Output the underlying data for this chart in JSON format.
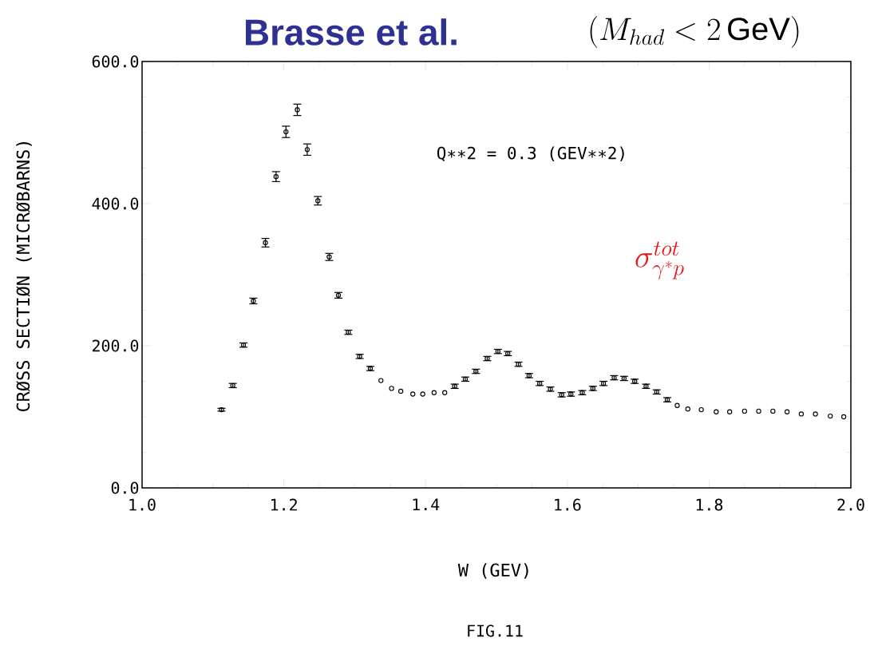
{
  "chart_data": {
    "type": "scatter",
    "title": "Brasse et al.",
    "subtitle": "(M_{had}<2\\,\\mathrm{GeV})",
    "xlabel": "W (GEV)",
    "ylabel": "CRØSS SECTIØN (MICRØBARNS)",
    "annotations": [
      "Q∗∗2 = 0.3 (GEV∗∗2)",
      "\\sigma^{tot}_{\\gamma^* p}",
      "FIG.11"
    ],
    "x": [
      1.112,
      1.128,
      1.143,
      1.157,
      1.174,
      1.189,
      1.203,
      1.219,
      1.233,
      1.248,
      1.264,
      1.277,
      1.291,
      1.307,
      1.322,
      1.337,
      1.352,
      1.365,
      1.382,
      1.396,
      1.412,
      1.427,
      1.441,
      1.456,
      1.471,
      1.487,
      1.502,
      1.516,
      1.531,
      1.546,
      1.561,
      1.576,
      1.592,
      1.605,
      1.621,
      1.636,
      1.651,
      1.666,
      1.68,
      1.695,
      1.711,
      1.726,
      1.741,
      1.755,
      1.77,
      1.789,
      1.81,
      1.829,
      1.85,
      1.87,
      1.89,
      1.91,
      1.93,
      1.95,
      1.971,
      1.99
    ],
    "values": [
      110,
      144,
      201,
      263,
      345,
      438,
      501,
      532,
      476,
      404,
      325,
      271,
      219,
      185,
      168,
      151,
      140,
      136,
      132,
      132,
      134,
      134,
      143,
      153,
      164,
      182,
      192,
      189,
      174,
      158,
      147,
      139,
      131,
      132,
      134,
      140,
      147,
      155,
      154,
      150,
      143,
      135,
      124,
      116,
      111,
      110,
      107,
      107,
      108,
      108,
      108,
      107,
      104,
      104,
      101,
      100
    ],
    "errors": [
      2,
      3,
      3,
      4,
      6,
      7,
      8,
      8,
      8,
      6,
      5,
      4,
      3,
      3,
      3,
      null,
      null,
      null,
      null,
      null,
      null,
      null,
      3,
      3,
      3,
      3,
      3,
      3,
      3,
      3,
      3,
      3,
      3,
      3,
      3,
      3,
      3,
      3,
      3,
      3,
      3,
      3,
      3,
      null,
      null,
      null,
      null,
      null,
      null,
      null,
      null,
      null,
      null,
      null,
      null,
      null
    ],
    "color": "#000000",
    "marker": "circle",
    "xlim": [
      1.0,
      2.0
    ],
    "ylim": [
      0,
      600
    ],
    "xticks": [
      {
        "value": 1.0,
        "label": "1.0"
      },
      {
        "value": 1.2,
        "label": "1.2"
      },
      {
        "value": 1.4,
        "label": "1.4"
      },
      {
        "value": 1.6,
        "label": "1.6"
      },
      {
        "value": 1.8,
        "label": "1.8"
      },
      {
        "value": 2.0,
        "label": "2.0"
      }
    ],
    "yticks": [
      {
        "value": 0,
        "label": "0.0"
      },
      {
        "value": 200,
        "label": "200.0"
      },
      {
        "value": 400,
        "label": "400.0"
      },
      {
        "value": 600,
        "label": "600.0"
      }
    ],
    "grid": false
  }
}
